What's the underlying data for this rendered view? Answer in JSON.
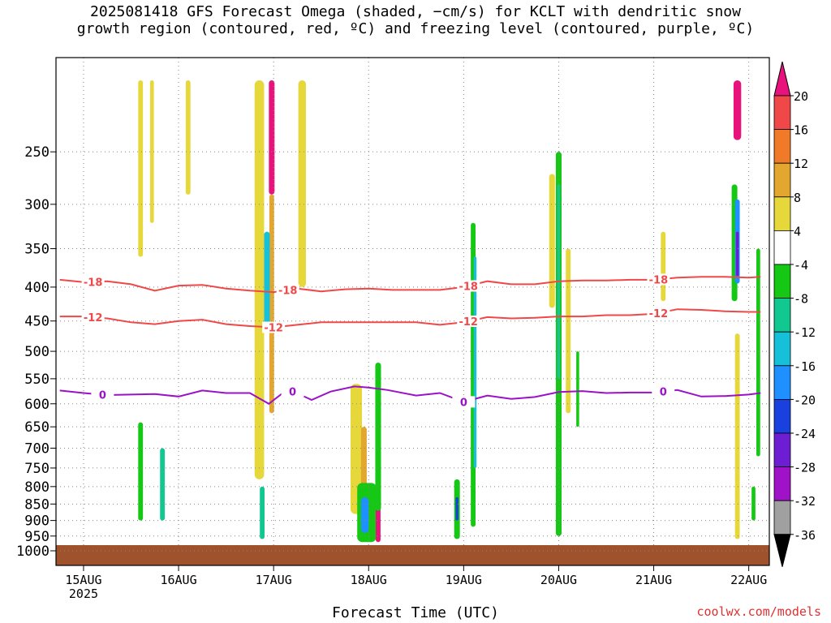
{
  "title_line1": "2025081418 GFS Forecast Omega (shaded, −cm/s) for KCLT with dendritic snow",
  "title_line2": "growth region (contoured, red, ºC) and freezing level (contoured, purple, ºC)",
  "xlabel": "Forecast Time (UTC)",
  "credit": "coolwx.com/models",
  "colors": {
    "ground": "#a0522d",
    "dgz_contour": "#f04848",
    "freezing_contour": "#9a12c8",
    "grid": "#888888"
  },
  "chart_data": {
    "type": "heatmap",
    "title": "2025081418 GFS Forecast Omega (shaded, −cm/s) for KCLT with dendritic snow growth region (contoured, red, ºC) and freezing level (contoured, purple, ºC)",
    "xlabel": "Forecast Time (UTC)",
    "ylabel": "",
    "y_scale": "log",
    "y_reversed": true,
    "xlim": [
      "2025-08-14T18",
      "2025-08-22T03"
    ],
    "ylim_hPa": [
      1030,
      195
    ],
    "x_ticks": [
      "15AUG\n2025",
      "16AUG",
      "17AUG",
      "18AUG",
      "19AUG",
      "20AUG",
      "21AUG",
      "22AUG"
    ],
    "x_tick_days": [
      15,
      16,
      17,
      18,
      19,
      20,
      21,
      22
    ],
    "y_ticks_hPa": [
      250,
      300,
      350,
      400,
      450,
      500,
      550,
      600,
      650,
      700,
      750,
      800,
      850,
      900,
      950,
      1000
    ],
    "grid": true,
    "colorbar": {
      "ticks": [
        20,
        16,
        12,
        8,
        4,
        -4,
        -8,
        -12,
        -16,
        -20,
        -24,
        -28,
        -32,
        -36
      ],
      "bins": [
        {
          "from": 20,
          "to": 24,
          "color": "#e8127c"
        },
        {
          "from": 16,
          "to": 20,
          "color": "#f04848"
        },
        {
          "from": 12,
          "to": 16,
          "color": "#f07a28"
        },
        {
          "from": 8,
          "to": 12,
          "color": "#e3a72f"
        },
        {
          "from": 4,
          "to": 8,
          "color": "#e6d83a"
        },
        {
          "from": -4,
          "to": 4,
          "color": "#ffffff"
        },
        {
          "from": -8,
          "to": -4,
          "color": "#14c814"
        },
        {
          "from": -12,
          "to": -8,
          "color": "#10c890"
        },
        {
          "from": -16,
          "to": -12,
          "color": "#16c0d8"
        },
        {
          "from": -20,
          "to": -16,
          "color": "#1e90ff"
        },
        {
          "from": -24,
          "to": -20,
          "color": "#1a40e0"
        },
        {
          "from": -28,
          "to": -24,
          "color": "#6e1ed2"
        },
        {
          "from": -32,
          "to": -28,
          "color": "#a012c8"
        },
        {
          "from": -36,
          "to": -32,
          "color": "#a0a0a0"
        },
        {
          "from": -40,
          "to": -36,
          "color": "#000000"
        }
      ]
    },
    "contours": [
      {
        "label": "-18",
        "color": "#f04848",
        "x_days": [
          14.75,
          15.0,
          15.25,
          15.5,
          15.75,
          16.0,
          16.25,
          16.5,
          16.75,
          17.0,
          17.25,
          17.5,
          17.75,
          18.0,
          18.25,
          18.5,
          18.75,
          19.0,
          19.25,
          19.5,
          19.75,
          20.0,
          20.25,
          20.5,
          20.75,
          21.0,
          21.25,
          21.5,
          21.75,
          22.0,
          22.125
        ],
        "p_hPa": [
          390,
          393,
          392,
          396,
          405,
          398,
          397,
          402,
          405,
          407,
          402,
          406,
          403,
          402,
          404,
          404,
          404,
          400,
          392,
          396,
          396,
          392,
          391,
          391,
          390,
          390,
          387,
          386,
          386,
          387,
          386
        ],
        "label_days": [
          15.1,
          17.15,
          19.05,
          21.05
        ]
      },
      {
        "label": "-12",
        "color": "#f04848",
        "x_days": [
          14.75,
          15.0,
          15.25,
          15.5,
          15.75,
          16.0,
          16.25,
          16.5,
          16.75,
          17.0,
          17.25,
          17.5,
          17.75,
          18.0,
          18.25,
          18.5,
          18.75,
          19.0,
          19.25,
          19.5,
          19.75,
          20.0,
          20.25,
          20.5,
          20.75,
          21.0,
          21.25,
          21.5,
          21.75,
          22.0,
          22.125
        ],
        "p_hPa": [
          443,
          443,
          446,
          452,
          455,
          450,
          448,
          455,
          458,
          460,
          456,
          452,
          452,
          452,
          452,
          452,
          456,
          452,
          444,
          446,
          445,
          443,
          443,
          441,
          441,
          439,
          432,
          433,
          435,
          436,
          436
        ],
        "label_days": [
          15.1,
          17.0,
          19.05,
          21.05
        ]
      },
      {
        "label": "0",
        "color": "#9a12c8",
        "x_days": [
          14.75,
          15.0,
          15.25,
          15.5,
          15.75,
          16.0,
          16.25,
          16.5,
          16.75,
          16.95,
          17.15,
          17.4,
          17.6,
          17.85,
          18.0,
          18.2,
          18.5,
          18.75,
          19.0,
          19.25,
          19.5,
          19.75,
          20.0,
          20.25,
          20.5,
          20.75,
          21.0,
          21.25,
          21.5,
          21.75,
          22.0,
          22.125
        ],
        "p_hPa": [
          573,
          578,
          582,
          581,
          580,
          585,
          573,
          578,
          578,
          600,
          570,
          592,
          575,
          565,
          567,
          572,
          583,
          578,
          596,
          583,
          590,
          586,
          576,
          574,
          578,
          577,
          577,
          572,
          585,
          584,
          581,
          578
        ],
        "label_days": [
          15.2,
          17.2,
          19.0,
          21.1
        ]
      }
    ],
    "omega_features": [
      {
        "day": 15.6,
        "width": 0.05,
        "p_top": 195,
        "p_bot": 360,
        "value": 5
      },
      {
        "day": 15.72,
        "width": 0.04,
        "p_top": 195,
        "p_bot": 320,
        "value": 6
      },
      {
        "day": 16.1,
        "width": 0.05,
        "p_top": 195,
        "p_bot": 290,
        "value": 5
      },
      {
        "day": 16.85,
        "width": 0.1,
        "p_top": 195,
        "p_bot": 780,
        "value": 6
      },
      {
        "day": 16.98,
        "width": 0.06,
        "p_top": 195,
        "p_bot": 290,
        "value": 22
      },
      {
        "day": 16.98,
        "width": 0.05,
        "p_top": 290,
        "p_bot": 620,
        "value": 9
      },
      {
        "day": 16.93,
        "width": 0.06,
        "p_top": 330,
        "p_bot": 460,
        "value": -13
      },
      {
        "day": 16.88,
        "width": 0.05,
        "p_top": 800,
        "p_bot": 960,
        "value": -10
      },
      {
        "day": 17.3,
        "width": 0.08,
        "p_top": 195,
        "p_bot": 400,
        "value": 5
      },
      {
        "day": 15.6,
        "width": 0.05,
        "p_top": 640,
        "p_bot": 900,
        "value": -6
      },
      {
        "day": 15.83,
        "width": 0.05,
        "p_top": 700,
        "p_bot": 900,
        "value": -9
      },
      {
        "day": 17.87,
        "width": 0.12,
        "p_top": 560,
        "p_bot": 880,
        "value": 6
      },
      {
        "day": 17.95,
        "width": 0.06,
        "p_top": 650,
        "p_bot": 830,
        "value": 10
      },
      {
        "day": 17.98,
        "width": 0.2,
        "p_top": 790,
        "p_bot": 970,
        "value": -8
      },
      {
        "day": 17.96,
        "width": 0.08,
        "p_top": 830,
        "p_bot": 940,
        "value": -18
      },
      {
        "day": 18.1,
        "width": 0.05,
        "p_top": 820,
        "p_bot": 970,
        "value": 21
      },
      {
        "day": 18.1,
        "width": 0.06,
        "p_top": 520,
        "p_bot": 870,
        "value": -7
      },
      {
        "day": 18.93,
        "width": 0.06,
        "p_top": 780,
        "p_bot": 960,
        "value": -8
      },
      {
        "day": 18.93,
        "width": 0.03,
        "p_top": 830,
        "p_bot": 900,
        "value": -24
      },
      {
        "day": 19.1,
        "width": 0.05,
        "p_top": 320,
        "p_bot": 920,
        "value": -8
      },
      {
        "day": 19.12,
        "width": 0.03,
        "p_top": 360,
        "p_bot": 750,
        "value": -13
      },
      {
        "day": 19.93,
        "width": 0.06,
        "p_top": 270,
        "p_bot": 430,
        "value": 6
      },
      {
        "day": 20.0,
        "width": 0.06,
        "p_top": 250,
        "p_bot": 950,
        "value": -8
      },
      {
        "day": 20.0,
        "width": 0.03,
        "p_top": 280,
        "p_bot": 550,
        "value": -12
      },
      {
        "day": 20.1,
        "width": 0.05,
        "p_top": 350,
        "p_bot": 620,
        "value": 6
      },
      {
        "day": 20.2,
        "width": 0.03,
        "p_top": 500,
        "p_bot": 650,
        "value": -7
      },
      {
        "day": 21.1,
        "width": 0.05,
        "p_top": 330,
        "p_bot": 420,
        "value": 5
      },
      {
        "day": 21.85,
        "width": 0.06,
        "p_top": 280,
        "p_bot": 420,
        "value": -8
      },
      {
        "day": 21.88,
        "width": 0.08,
        "p_top": 195,
        "p_bot": 240,
        "value": 22
      },
      {
        "day": 21.88,
        "width": 0.05,
        "p_top": 295,
        "p_bot": 395,
        "value": -17
      },
      {
        "day": 21.88,
        "width": 0.03,
        "p_top": 330,
        "p_bot": 385,
        "value": -26
      },
      {
        "day": 21.88,
        "width": 0.05,
        "p_top": 470,
        "p_bot": 960,
        "value": 5
      },
      {
        "day": 22.1,
        "width": 0.04,
        "p_top": 350,
        "p_bot": 720,
        "value": -7
      },
      {
        "day": 22.05,
        "width": 0.04,
        "p_top": 800,
        "p_bot": 900,
        "value": -7
      }
    ]
  }
}
